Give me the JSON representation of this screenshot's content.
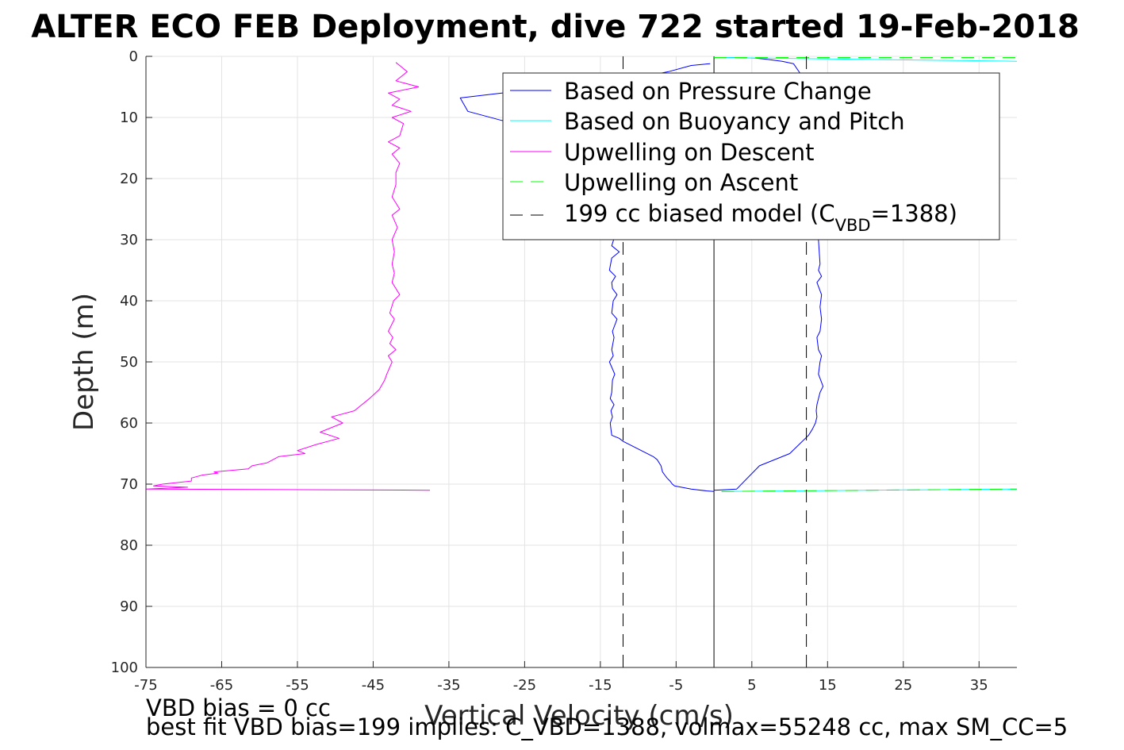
{
  "chart_data": {
    "type": "line",
    "title": "ALTER ECO FEB Deployment, dive 722 started 19-Feb-2018",
    "xlabel": "Vertical Velocity (cm/s)",
    "ylabel": "Depth (m)",
    "xlim": [
      -75,
      40
    ],
    "ylim": [
      0,
      100
    ],
    "y_reversed": true,
    "grid": true,
    "legend_position": "top-right",
    "x_ticks": [
      "-75",
      "-65",
      "-55",
      "-45",
      "-35",
      "-25",
      "-15",
      "-5",
      "5",
      "15",
      "25",
      "35"
    ],
    "y_ticks": [
      "0",
      "10",
      "20",
      "30",
      "40",
      "50",
      "60",
      "70",
      "80",
      "90",
      "100"
    ],
    "legend": {
      "pressure": "Based on Pressure Change",
      "buoyancy": "Based on Buoyancy and Pitch",
      "up_desc": "Upwelling on Descent",
      "up_asc": "Upwelling on Ascent",
      "model_prefix": "199 cc biased model (C",
      "model_sub": "VBD",
      "model_suffix": "=1388)"
    },
    "colors": {
      "pressure": "#0000ff",
      "buoyancy": "#00ffff",
      "up_desc": "#ff00ff",
      "up_asc": "#00ff00",
      "model": "#000000"
    },
    "series": [
      {
        "name": "Based on Pressure Change",
        "segment": "descent",
        "x": [
          -0.5,
          -3,
          -6,
          -10,
          -20,
          -28,
          -33.5,
          -32.5,
          -28,
          -24,
          -27,
          -25,
          -23,
          -14,
          -13,
          -13.5,
          -12.5,
          -13.5,
          -13.8,
          -13,
          -13.5,
          -13.4,
          -12.8,
          -13.3,
          -13.5,
          -12.8,
          -13.4,
          -13.2,
          -13.5,
          -13.3,
          -13.8,
          -13.1,
          -13.4,
          -13.5,
          -13.7,
          -13.2,
          -13.6,
          -13.4,
          -13.7,
          -13.6,
          -13.5,
          -12.5,
          -12,
          -8,
          -7.5,
          -7,
          -6.8,
          -6.5,
          -6.2,
          -5.8,
          -5.5,
          -5.2,
          -3,
          -1,
          0
        ],
        "y": [
          1.2,
          1.5,
          2.5,
          3.5,
          5.2,
          6,
          6.8,
          9,
          10.5,
          11.5,
          5,
          4.5,
          6,
          27,
          29,
          31,
          32,
          33,
          35,
          36,
          37,
          38,
          39,
          40,
          42,
          43,
          45,
          46,
          48,
          49,
          50,
          52,
          53,
          55,
          56,
          57,
          58,
          59,
          60,
          61,
          62,
          62.5,
          63,
          65.5,
          66,
          67,
          68,
          68.5,
          69,
          69.5,
          70,
          70.3,
          70.8,
          71.1,
          71.2
        ]
      },
      {
        "name": "Based on Pressure Change",
        "segment": "ascent",
        "x": [
          0,
          3,
          5.5,
          7,
          9,
          10.5,
          11.5,
          13,
          14.4,
          14.4,
          14.2,
          14.0,
          13.8,
          13.9,
          14.0,
          13.8,
          14.2,
          13.6,
          14.2,
          14.0,
          14.2,
          14.0,
          13.6,
          13.8,
          14.2,
          14.0,
          13.8,
          14.4,
          14.0,
          13.8,
          13.6,
          13.5,
          13.6,
          13.4,
          13,
          12.5,
          10,
          6,
          3,
          0
        ],
        "y": [
          0.2,
          0.2,
          0.3,
          0.5,
          0.8,
          1.2,
          3,
          3.8,
          5,
          20,
          25,
          28,
          30,
          32,
          34,
          35,
          36,
          37,
          39,
          41,
          43,
          45,
          46,
          48,
          49,
          50,
          52,
          54,
          55,
          56,
          57,
          58,
          59,
          60,
          61,
          62,
          65,
          67,
          70.8,
          71
        ]
      },
      {
        "name": "Based on Buoyancy and Pitch",
        "segment": "descent",
        "x": [
          40,
          1,
          0
        ],
        "y": [
          0.8,
          0.2,
          0.2
        ]
      },
      {
        "name": "Based on Buoyancy and Pitch",
        "segment": "ascent",
        "x": [
          1,
          40
        ],
        "y": [
          71.2,
          70.8
        ]
      },
      {
        "name": "Upwelling on Descent",
        "x": [
          -42,
          -40.5,
          -42,
          -39,
          -43,
          -41.5,
          -42.5,
          -40,
          -42.5,
          -41,
          -41.5,
          -43,
          -41.5,
          -42.5,
          -41.5,
          -42,
          -42,
          -42.5,
          -41.5,
          -42.5,
          -41.8,
          -42.5,
          -42.2,
          -42.5,
          -42.2,
          -42.5,
          -41.5,
          -42.3,
          -42.8,
          -42.2,
          -43,
          -42.4,
          -42.8,
          -42,
          -43,
          -42.5,
          -43.2,
          -43.5,
          -44.2,
          -45.5,
          -47.5,
          -50.5,
          -49,
          -52,
          -49.5,
          -52.5,
          -55,
          -54,
          -57.5,
          -59,
          -61,
          -61.5,
          -66,
          -65.5,
          -67.5,
          -69,
          -69,
          -72.8,
          -74,
          -69.5,
          -75,
          -37.5
        ],
        "y": [
          1,
          2.5,
          4,
          5,
          6,
          7,
          8,
          9,
          10,
          11,
          13,
          14,
          15,
          16,
          17.5,
          19,
          21,
          23,
          25,
          26,
          28,
          30,
          32,
          34,
          35.5,
          37,
          39,
          40,
          42,
          43,
          45,
          46,
          47,
          48,
          49,
          50,
          52,
          53,
          54.5,
          56,
          58,
          59,
          60,
          61.5,
          62.5,
          63.5,
          64.5,
          65,
          65.5,
          66.5,
          67,
          67.5,
          68,
          68.2,
          68.5,
          69,
          69.5,
          70,
          70.3,
          70.5,
          70.8,
          71
        ]
      },
      {
        "name": "Upwelling on Ascent",
        "segment": "top",
        "x": [
          0,
          40
        ],
        "y": [
          0.2,
          0.2
        ]
      },
      {
        "name": "Upwelling on Ascent",
        "segment": "bottom",
        "x": [
          1,
          40
        ],
        "y": [
          71.2,
          70.8
        ]
      },
      {
        "name": "199 cc biased model (C_VBD=1388)",
        "segment": "negative",
        "x": [
          -12,
          -12
        ],
        "y": [
          0,
          100
        ]
      },
      {
        "name": "199 cc biased model (C_VBD=1388)",
        "segment": "positive",
        "x": [
          12.2,
          12.2
        ],
        "y": [
          0,
          100
        ]
      }
    ],
    "zero_line_x": 0
  },
  "annotations": {
    "line1": "VBD bias = 0 cc",
    "line2": "best fit VBD bias=199 implies: C_VBD=1388, volmax=55248 cc, max SM_CC=5"
  }
}
